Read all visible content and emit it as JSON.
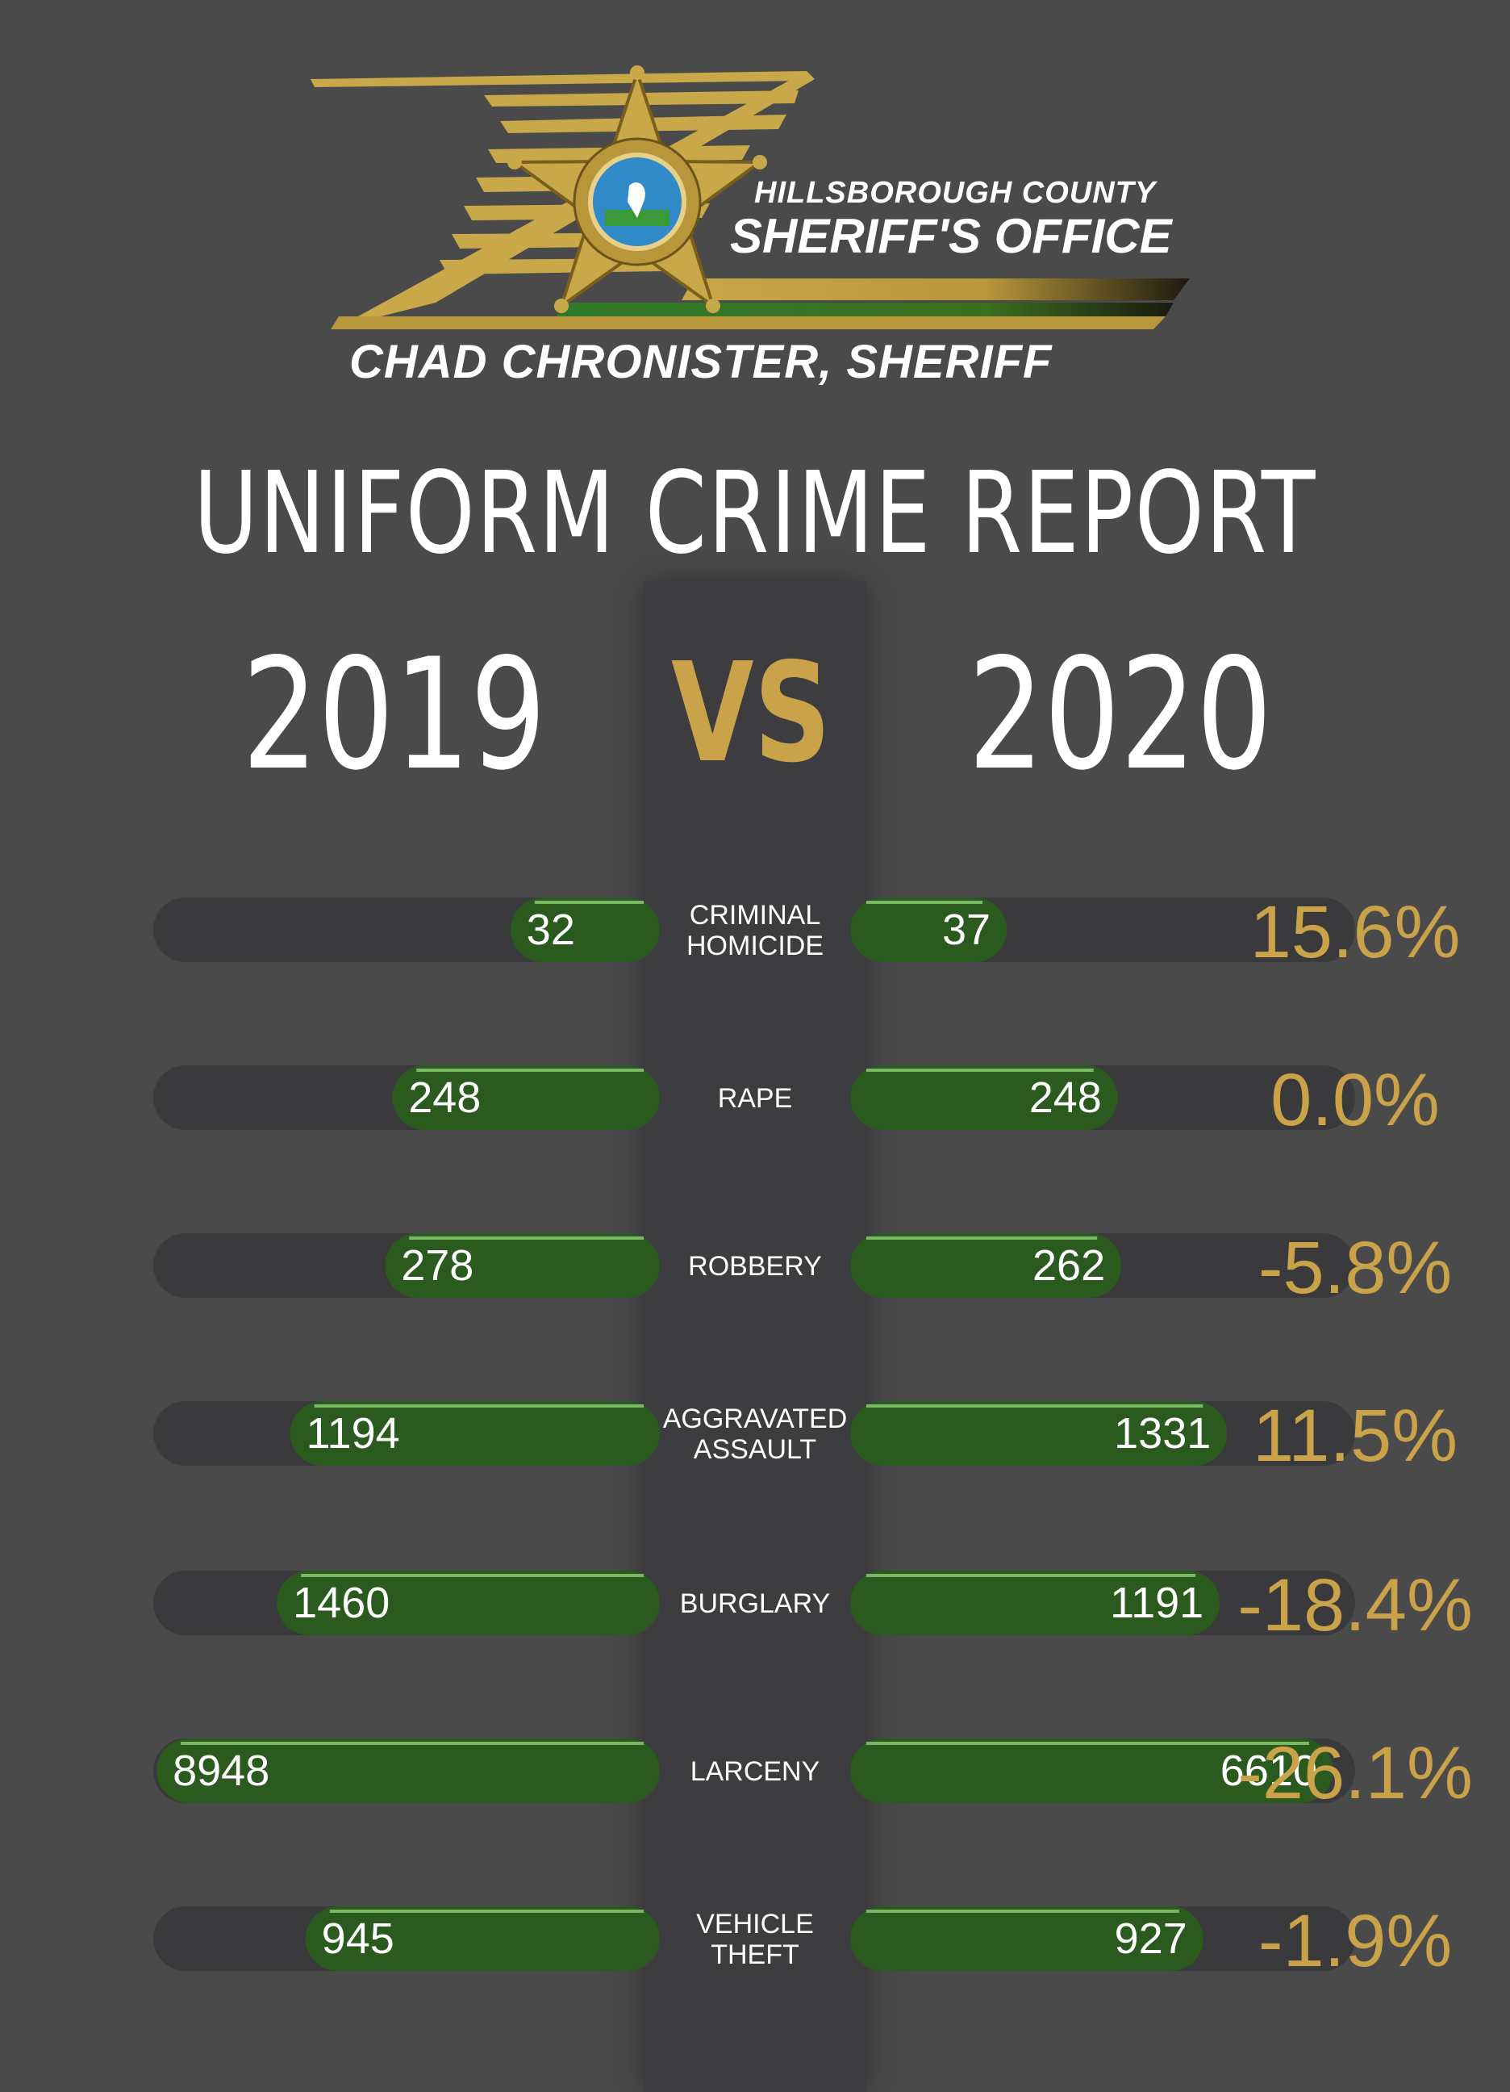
{
  "header": {
    "agency_line1": "HILLSBOROUGH COUNTY",
    "agency_line2": "SHERIFF'S OFFICE",
    "sheriff_name": "CHAD CHRONISTER, SHERIFF",
    "badge_text_top": "SHERIFF'S OFFICE",
    "badge_text_bottom": "HILLSBOROUGH COUNTY",
    "icon": "sheriff-star-badge-icon"
  },
  "title": "UNIFORM CRIME REPORT",
  "year_left": "2019",
  "vs": "VS",
  "year_right": "2020",
  "colors": {
    "background": "#4a4a4b",
    "center_column": "#3d3c3e",
    "bar_track": "#3a393b",
    "bar_fill": "#2a5a1e",
    "gold": "#c9a24a",
    "text": "#ffffff"
  },
  "chart_data": {
    "type": "bar",
    "categories": [
      [
        "CRIMINAL",
        "HOMICIDE"
      ],
      [
        "RAPE"
      ],
      [
        "ROBBERY"
      ],
      [
        "AGGRAVATED",
        "ASSAULT"
      ],
      [
        "BURGLARY"
      ],
      [
        "LARCENY"
      ],
      [
        "VEHICLE",
        "THEFT"
      ]
    ],
    "series": [
      {
        "name": "2019",
        "values": [
          32,
          248,
          278,
          1194,
          1460,
          8948,
          945
        ]
      },
      {
        "name": "2020",
        "values": [
          37,
          248,
          262,
          1331,
          1191,
          6610,
          927
        ]
      }
    ],
    "percent_change": [
      "15.6%",
      "0.0%",
      "-5.8%",
      "11.5%",
      "-18.4%",
      "-26.1%",
      "-1.9%"
    ],
    "layout_note": "butterfly bars: 2019 extends left from center, 2020 extends right; bar lengths are not linear in value"
  }
}
